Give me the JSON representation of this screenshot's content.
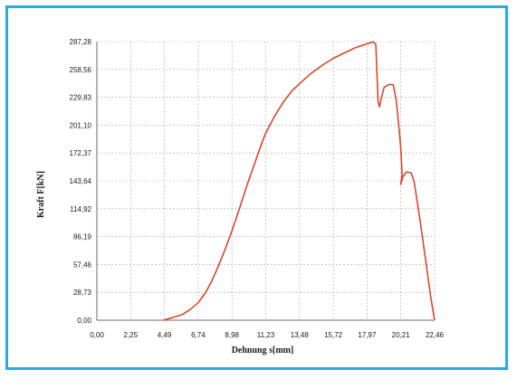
{
  "chart_data": {
    "type": "line",
    "title": "",
    "xlabel": "Dehnung s[mm]",
    "ylabel": "Kraft F[kN]",
    "x_ticks": [
      "0,00",
      "2,25",
      "4,49",
      "6,74",
      "8,98",
      "11,23",
      "13,48",
      "15,72",
      "17,97",
      "20,21",
      "22,46"
    ],
    "y_ticks": [
      "0,00",
      "28,73",
      "57,46",
      "86,19",
      "114,92",
      "143,64",
      "172,37",
      "201,10",
      "229,83",
      "258,56",
      "287,28"
    ],
    "xlim": [
      0,
      22.46
    ],
    "ylim": [
      0,
      287.28
    ],
    "grid": true,
    "line_color": "#d9482b",
    "series": [
      {
        "name": "",
        "points": [
          [
            4.4,
            0
          ],
          [
            5.1,
            3
          ],
          [
            5.7,
            6
          ],
          [
            6.2,
            11
          ],
          [
            6.74,
            18
          ],
          [
            7.2,
            28
          ],
          [
            7.6,
            39
          ],
          [
            8.0,
            53
          ],
          [
            8.5,
            72
          ],
          [
            8.98,
            92
          ],
          [
            9.5,
            116
          ],
          [
            10.0,
            140
          ],
          [
            10.5,
            162
          ],
          [
            11.0,
            184
          ],
          [
            11.23,
            193
          ],
          [
            11.8,
            210
          ],
          [
            12.4,
            225
          ],
          [
            13.0,
            237
          ],
          [
            13.48,
            244
          ],
          [
            14.2,
            254
          ],
          [
            15.0,
            263
          ],
          [
            15.72,
            270
          ],
          [
            16.5,
            276
          ],
          [
            17.2,
            281
          ],
          [
            17.97,
            285
          ],
          [
            18.4,
            287
          ],
          [
            18.55,
            284
          ],
          [
            18.7,
            225
          ],
          [
            18.8,
            220
          ],
          [
            18.9,
            228
          ],
          [
            19.1,
            240
          ],
          [
            19.4,
            243
          ],
          [
            19.7,
            243
          ],
          [
            19.9,
            228
          ],
          [
            20.1,
            197
          ],
          [
            20.21,
            178
          ],
          [
            20.3,
            150
          ],
          [
            20.2,
            140
          ],
          [
            20.35,
            148
          ],
          [
            20.6,
            153
          ],
          [
            20.9,
            152
          ],
          [
            21.1,
            143
          ],
          [
            21.5,
            102
          ],
          [
            21.9,
            58
          ],
          [
            22.2,
            24
          ],
          [
            22.46,
            0
          ]
        ]
      }
    ]
  }
}
